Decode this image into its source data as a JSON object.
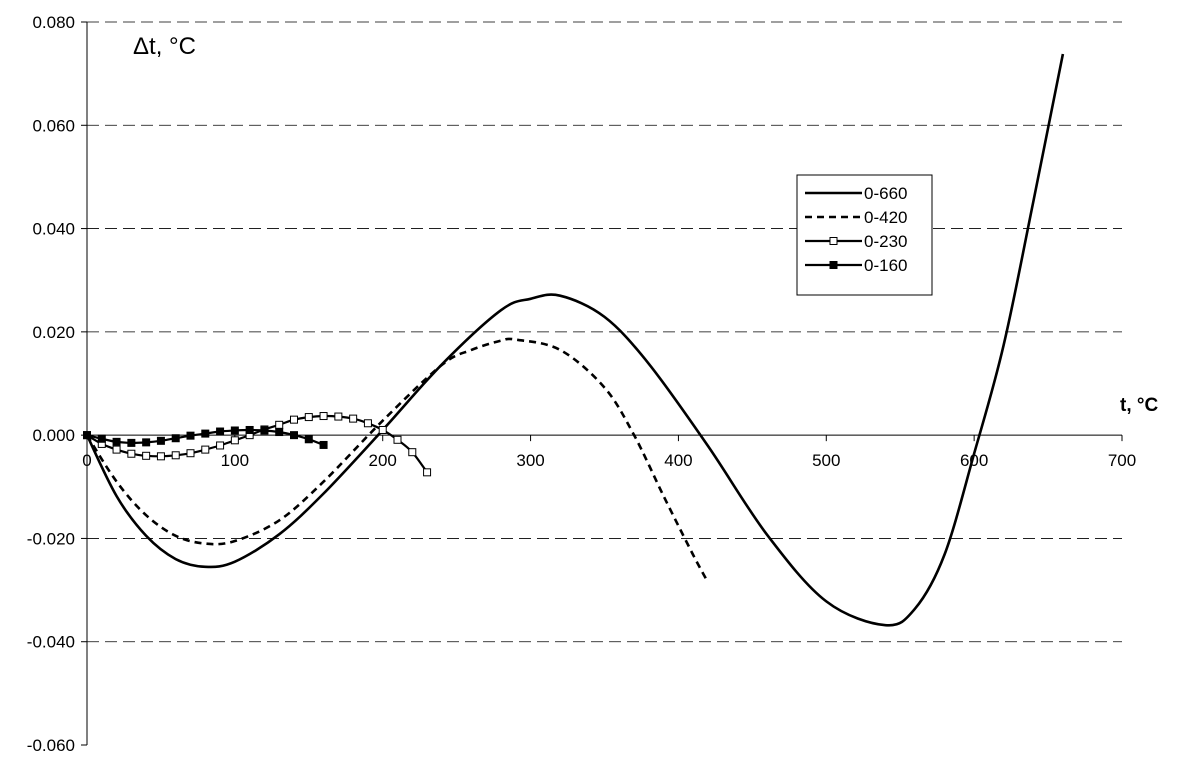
{
  "chart_data": {
    "type": "line",
    "title": "",
    "xlabel": "t, °C",
    "ylabel": "Δt, °C",
    "xlim": [
      0,
      700
    ],
    "ylim": [
      -0.06,
      0.08
    ],
    "x_ticks": [
      0,
      100,
      200,
      300,
      400,
      500,
      600,
      700
    ],
    "x_tick_labels": [
      "0",
      "100",
      "200",
      "300",
      "400",
      "500",
      "600",
      "700"
    ],
    "y_ticks": [
      -0.06,
      -0.04,
      -0.02,
      0.0,
      0.02,
      0.04,
      0.06,
      0.08
    ],
    "y_tick_labels": [
      "-0.060",
      "-0.040",
      "-0.020",
      "0.000",
      "0.020",
      "0.040",
      "0.060",
      "0.080"
    ],
    "grid": "horizontal dashed",
    "legend_position": "upper-right",
    "series": [
      {
        "name": "0-660",
        "style": "solid",
        "marker": "none",
        "color": "#000000",
        "x": [
          0,
          20,
          40,
          60,
          80,
          100,
          130,
          160,
          200,
          240,
          280,
          300,
          320,
          350,
          380,
          420,
          460,
          500,
          540,
          560,
          580,
          600,
          620,
          640,
          660
        ],
        "y": [
          0,
          -0.0118,
          -0.0195,
          -0.024,
          -0.0255,
          -0.0245,
          -0.0192,
          -0.0113,
          0.001,
          0.0137,
          0.0242,
          0.0264,
          0.027,
          0.0229,
          0.0138,
          -0.0021,
          -0.0193,
          -0.0322,
          -0.0368,
          -0.0336,
          -0.0231,
          -0.0036,
          0.0175,
          0.0452,
          0.0738
        ]
      },
      {
        "name": "0-420",
        "style": "dashed",
        "marker": "none",
        "color": "#000000",
        "x": [
          0,
          20,
          40,
          60,
          80,
          100,
          130,
          160,
          200,
          240,
          260,
          280,
          290,
          320,
          350,
          370,
          390,
          410,
          420
        ],
        "y": [
          0,
          -0.009,
          -0.0155,
          -0.0195,
          -0.021,
          -0.0205,
          -0.0165,
          -0.009,
          0.0028,
          0.0136,
          0.0165,
          0.0183,
          0.0185,
          0.0165,
          0.0092,
          0.0,
          -0.0118,
          -0.0232,
          -0.0285
        ]
      },
      {
        "name": "0-230",
        "style": "solid",
        "marker": "open-square",
        "color": "#000000",
        "x": [
          0,
          10,
          20,
          30,
          40,
          50,
          60,
          70,
          80,
          90,
          100,
          110,
          120,
          130,
          140,
          150,
          160,
          170,
          180,
          190,
          200,
          210,
          220,
          230
        ],
        "y": [
          0,
          -0.0017,
          -0.0028,
          -0.0036,
          -0.004,
          -0.0041,
          -0.0039,
          -0.0035,
          -0.0028,
          -0.002,
          -0.001,
          0.0,
          0.0011,
          0.002,
          0.003,
          0.0035,
          0.0037,
          0.0036,
          0.0032,
          0.0023,
          0.001,
          -0.0009,
          -0.0033,
          -0.0072
        ]
      },
      {
        "name": "0-160",
        "style": "solid",
        "marker": "filled-square",
        "color": "#000000",
        "x": [
          0,
          10,
          20,
          30,
          40,
          50,
          60,
          70,
          80,
          90,
          100,
          110,
          120,
          130,
          140,
          150,
          160
        ],
        "y": [
          0,
          -0.0007,
          -0.0013,
          -0.0015,
          -0.0014,
          -0.0011,
          -0.0006,
          -0.0001,
          0.0003,
          0.0007,
          0.0009,
          0.001,
          0.0009,
          0.0006,
          0.0,
          -0.0008,
          -0.0019
        ]
      }
    ]
  }
}
